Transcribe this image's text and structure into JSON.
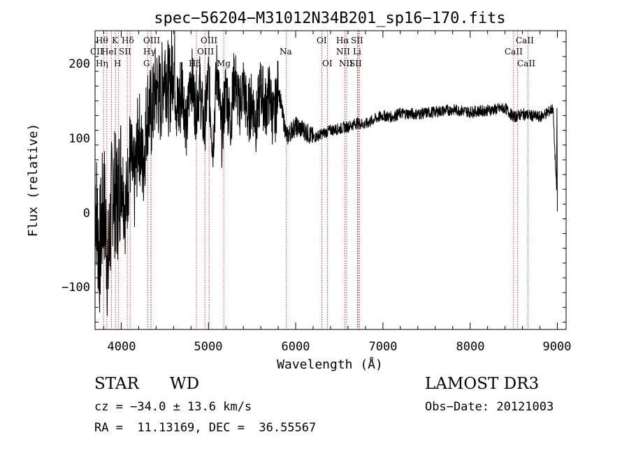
{
  "chart_data": {
    "type": "line",
    "title": "spec−56204−M31012N34B201_sp16−170.fits",
    "xlabel": "Wavelength (Å)",
    "ylabel": "Flux (relative)",
    "xlim": [
      3700,
      9100
    ],
    "ylim": [
      -160,
      245
    ],
    "xticks": [
      4000,
      5000,
      6000,
      7000,
      8000,
      9000
    ],
    "xtick_labels": [
      "4000",
      "5000",
      "6000",
      "7000",
      "8000",
      "9000"
    ],
    "yticks": [
      -100,
      0,
      100,
      200
    ],
    "ytick_labels": [
      "−100",
      "0",
      "100",
      "200"
    ],
    "series": [
      {
        "name": "spectrum",
        "x": [
          3700,
          3750,
          3800,
          3850,
          3900,
          3950,
          4000,
          4050,
          4100,
          4150,
          4200,
          4250,
          4300,
          4350,
          4400,
          4450,
          4500,
          4550,
          4600,
          4650,
          4700,
          4750,
          4800,
          4850,
          4900,
          4950,
          5000,
          5050,
          5100,
          5150,
          5200,
          5250,
          5300,
          5350,
          5400,
          5450,
          5500,
          5550,
          5600,
          5650,
          5700,
          5750,
          5800,
          5850,
          5900,
          5950,
          6000,
          6100,
          6200,
          6300,
          6400,
          6500,
          6600,
          6700,
          6800,
          6900,
          7000,
          7100,
          7200,
          7400,
          7600,
          7800,
          8000,
          8200,
          8400,
          8500,
          8600,
          8700,
          8800,
          8900,
          8950,
          9000
        ],
        "y": [
          30,
          -60,
          20,
          -80,
          40,
          10,
          60,
          0,
          80,
          30,
          110,
          60,
          140,
          130,
          170,
          150,
          200,
          160,
          210,
          130,
          175,
          110,
          190,
          140,
          170,
          110,
          180,
          90,
          200,
          100,
          170,
          120,
          185,
          140,
          170,
          130,
          150,
          120,
          170,
          140,
          160,
          120,
          170,
          130,
          100,
          110,
          115,
          110,
          100,
          105,
          110,
          112,
          115,
          120,
          118,
          125,
          130,
          128,
          133,
          132,
          135,
          138,
          135,
          137,
          140,
          128,
          132,
          130,
          128,
          135,
          140,
          0
        ]
      }
    ],
    "lines": [
      {
        "name": "Hθ",
        "x": 3798
      },
      {
        "name": "CII",
        "x": 3835
      },
      {
        "name": "Hη",
        "x": 3889
      },
      {
        "name": "K",
        "x": 3934
      },
      {
        "name": "HeI",
        "x": 3970
      },
      {
        "name": "SII",
        "x": 4070
      },
      {
        "name": "Hδ",
        "x": 4102
      },
      {
        "name": "OIII",
        "x": 4340
      },
      {
        "name": "Hγ",
        "x": 4341
      },
      {
        "name": "G",
        "x": 4305
      },
      {
        "name": "Hβ",
        "x": 4861
      },
      {
        "name": "OIII",
        "x": 4959
      },
      {
        "name": "OIII",
        "x": 5007
      },
      {
        "name": "Mg",
        "x": 5175
      },
      {
        "name": "Na",
        "x": 5893
      },
      {
        "name": "OI",
        "x": 6300
      },
      {
        "name": "OI",
        "x": 6364
      },
      {
        "name": "Hα",
        "x": 6563
      },
      {
        "name": "NII",
        "x": 6584
      },
      {
        "name": "Li",
        "x": 6708
      },
      {
        "name": "SII",
        "x": 6717
      },
      {
        "name": "SII",
        "x": 6731
      },
      {
        "name": "CaII",
        "x": 8498
      },
      {
        "name": "CaII",
        "x": 8542
      },
      {
        "name": "CaII",
        "x": 8662
      }
    ],
    "line_color": "#cc0000",
    "trace_color": "#000000"
  },
  "labels": {
    "hthe": "Hθ",
    "cii": "CII",
    "heta": "Hη",
    "k": "K",
    "hei": "HeI",
    "h": "H",
    "sii_blue": "SII",
    "hdel": "Hδ",
    "oiii_a": "OIII",
    "hgam": "Hγ",
    "g": "G",
    "hbeta": "Hβ",
    "oiii_b": "OIII",
    "oiii_c": "OIII",
    "mg": "Mg",
    "na": "Na",
    "oi_a": "OI",
    "oi_b": "OI",
    "halpha": "Hα",
    "nii_a": "NII",
    "nii_b": "NII",
    "sii_a": "SII",
    "li": "Li",
    "sii_b": "SII",
    "caii_a": "CaII",
    "caii_b": "CaII",
    "caii_c": "CaII"
  },
  "footer": {
    "class": "STAR",
    "subclass": "WD",
    "survey": "LAMOST DR3",
    "redshift": "cz = −34.0 ± 13.6 km/s",
    "obs_date": "Obs−Date: 20121003",
    "coords": "RA =  11.13169, DEC =  36.55567"
  }
}
